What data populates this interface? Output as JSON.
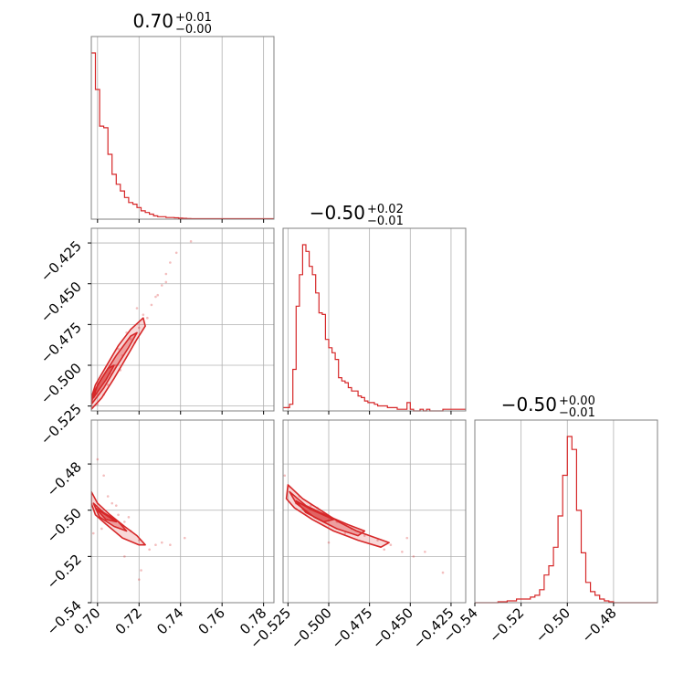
{
  "chart_data": {
    "type": "scatter",
    "subtype": "corner-plot",
    "grid": true,
    "color": "#d62728",
    "parameters": [
      {
        "index": 0,
        "title": {
          "main": "0.70",
          "sup": "+0.01",
          "sub": "−0.00"
        },
        "range": [
          0.697,
          0.785
        ],
        "ticks": [
          0.7,
          0.72,
          0.74,
          0.76,
          0.78
        ],
        "tick_labels": [
          "0.70",
          "0.72",
          "0.74",
          "0.76",
          "0.78"
        ]
      },
      {
        "index": 1,
        "title": {
          "main": "−0.50",
          "sup": "+0.02",
          "sub": "−0.01"
        },
        "range": [
          -0.528,
          -0.416
        ],
        "ticks": [
          -0.525,
          -0.5,
          -0.475,
          -0.45,
          -0.425
        ],
        "tick_labels": [
          "−0.525",
          "−0.500",
          "−0.475",
          "−0.450",
          "−0.425"
        ]
      },
      {
        "index": 2,
        "title": {
          "main": "−0.50",
          "sup": "+0.00",
          "sub": "−0.01"
        },
        "range": [
          -0.54,
          -0.461
        ],
        "ticks": [
          -0.54,
          -0.52,
          -0.5,
          -0.48
        ],
        "tick_labels": [
          "−0.54",
          "−0.52",
          "−0.50",
          "−0.48"
        ]
      }
    ],
    "histograms": [
      {
        "param": 0,
        "bin_edges": [
          0.697,
          0.699,
          0.701,
          0.703,
          0.705,
          0.707,
          0.709,
          0.711,
          0.713,
          0.715,
          0.717,
          0.719,
          0.721,
          0.723,
          0.725,
          0.727,
          0.729,
          0.731,
          0.733,
          0.735,
          0.737,
          0.739,
          0.741,
          0.743,
          0.745,
          0.785
        ],
        "counts": [
          1.0,
          0.78,
          0.56,
          0.55,
          0.39,
          0.27,
          0.21,
          0.17,
          0.13,
          0.1,
          0.09,
          0.07,
          0.05,
          0.04,
          0.03,
          0.02,
          0.015,
          0.015,
          0.01,
          0.01,
          0.008,
          0.006,
          0.005,
          0.004,
          0.003
        ]
      },
      {
        "param": 1,
        "bin_edges": [
          -0.528,
          -0.526,
          -0.524,
          -0.522,
          -0.52,
          -0.518,
          -0.516,
          -0.514,
          -0.512,
          -0.51,
          -0.508,
          -0.506,
          -0.504,
          -0.502,
          -0.5,
          -0.498,
          -0.496,
          -0.494,
          -0.492,
          -0.49,
          -0.488,
          -0.486,
          -0.484,
          -0.482,
          -0.48,
          -0.478,
          -0.476,
          -0.474,
          -0.472,
          -0.47,
          -0.468,
          -0.466,
          -0.464,
          -0.462,
          -0.46,
          -0.458,
          -0.456,
          -0.454,
          -0.452,
          -0.45,
          -0.448,
          -0.446,
          -0.444,
          -0.442,
          -0.44,
          -0.438,
          -0.436,
          -0.434,
          -0.432,
          -0.43,
          -0.416
        ],
        "counts": [
          0.02,
          0.02,
          0.04,
          0.25,
          0.63,
          0.82,
          1.0,
          0.96,
          0.87,
          0.82,
          0.71,
          0.59,
          0.58,
          0.43,
          0.38,
          0.35,
          0.31,
          0.2,
          0.18,
          0.17,
          0.14,
          0.12,
          0.12,
          0.09,
          0.08,
          0.06,
          0.05,
          0.05,
          0.04,
          0.03,
          0.03,
          0.03,
          0.02,
          0.02,
          0.02,
          0.01,
          0.01,
          0.01,
          0.05,
          0.01,
          0.0,
          0.0,
          0.01,
          0.0,
          0.01,
          0.0,
          0.0,
          0.0,
          0.0,
          0.01
        ]
      },
      {
        "param": 2,
        "bin_edges": [
          -0.54,
          -0.53,
          -0.528,
          -0.526,
          -0.524,
          -0.522,
          -0.52,
          -0.518,
          -0.516,
          -0.514,
          -0.512,
          -0.51,
          -0.508,
          -0.506,
          -0.504,
          -0.502,
          -0.5,
          -0.498,
          -0.496,
          -0.494,
          -0.492,
          -0.49,
          -0.488,
          -0.486,
          -0.484,
          -0.482,
          -0.48,
          -0.461
        ],
        "counts": [
          0.0,
          0.005,
          0.005,
          0.01,
          0.01,
          0.02,
          0.02,
          0.02,
          0.03,
          0.04,
          0.07,
          0.15,
          0.2,
          0.3,
          0.47,
          0.69,
          0.9,
          0.83,
          0.5,
          0.27,
          0.11,
          0.06,
          0.04,
          0.02,
          0.01,
          0.005,
          0.0
        ]
      }
    ],
    "contours": [
      {
        "x_param": 0,
        "y_param": 1,
        "levels": [
          [
            [
              0.697,
              -0.527
            ],
            [
              0.702,
              -0.52
            ],
            [
              0.708,
              -0.508
            ],
            [
              0.714,
              -0.495
            ],
            [
              0.719,
              -0.484
            ],
            [
              0.723,
              -0.476
            ],
            [
              0.722,
              -0.471
            ],
            [
              0.716,
              -0.478
            ],
            [
              0.71,
              -0.488
            ],
            [
              0.704,
              -0.501
            ],
            [
              0.699,
              -0.512
            ],
            [
              0.697,
              -0.52
            ]
          ],
          [
            [
              0.697,
              -0.524
            ],
            [
              0.703,
              -0.514
            ],
            [
              0.709,
              -0.501
            ],
            [
              0.715,
              -0.489
            ],
            [
              0.719,
              -0.48
            ],
            [
              0.716,
              -0.482
            ],
            [
              0.709,
              -0.494
            ],
            [
              0.702,
              -0.508
            ],
            [
              0.698,
              -0.517
            ]
          ],
          [
            [
              0.698,
              -0.52
            ],
            [
              0.704,
              -0.509
            ],
            [
              0.708,
              -0.5
            ],
            [
              0.705,
              -0.502
            ],
            [
              0.7,
              -0.512
            ]
          ]
        ],
        "scatter": [
          [
            0.7,
            -0.524
          ],
          [
            0.703,
            -0.518
          ],
          [
            0.706,
            -0.505
          ],
          [
            0.709,
            -0.5
          ],
          [
            0.712,
            -0.494
          ],
          [
            0.716,
            -0.484
          ],
          [
            0.72,
            -0.477
          ],
          [
            0.722,
            -0.469
          ],
          [
            0.726,
            -0.463
          ],
          [
            0.728,
            -0.458
          ],
          [
            0.731,
            -0.451
          ],
          [
            0.733,
            -0.444
          ],
          [
            0.735,
            -0.437
          ],
          [
            0.738,
            -0.431
          ],
          [
            0.745,
            -0.424
          ],
          [
            0.705,
            -0.512
          ],
          [
            0.711,
            -0.503
          ],
          [
            0.718,
            -0.486
          ],
          [
            0.724,
            -0.471
          ],
          [
            0.729,
            -0.457
          ],
          [
            0.733,
            -0.449
          ],
          [
            0.699,
            -0.514
          ],
          [
            0.71,
            -0.49
          ],
          [
            0.714,
            -0.48
          ],
          [
            0.719,
            -0.465
          ]
        ]
      },
      {
        "x_param": 0,
        "y_param": 2,
        "levels": [
          [
            [
              0.697,
              -0.492
            ],
            [
              0.7,
              -0.497
            ],
            [
              0.706,
              -0.502
            ],
            [
              0.713,
              -0.507
            ],
            [
              0.719,
              -0.511
            ],
            [
              0.723,
              -0.515
            ],
            [
              0.72,
              -0.515
            ],
            [
              0.712,
              -0.512
            ],
            [
              0.704,
              -0.506
            ],
            [
              0.699,
              -0.502
            ],
            [
              0.697,
              -0.497
            ]
          ],
          [
            [
              0.698,
              -0.497
            ],
            [
              0.703,
              -0.501
            ],
            [
              0.71,
              -0.505
            ],
            [
              0.714,
              -0.509
            ],
            [
              0.708,
              -0.507
            ],
            [
              0.701,
              -0.503
            ]
          ],
          [
            [
              0.699,
              -0.499
            ],
            [
              0.704,
              -0.502
            ],
            [
              0.709,
              -0.505
            ],
            [
              0.704,
              -0.504
            ]
          ]
        ],
        "scatter": [
          [
            0.7,
            -0.478
          ],
          [
            0.703,
            -0.485
          ],
          [
            0.705,
            -0.494
          ],
          [
            0.707,
            -0.497
          ],
          [
            0.71,
            -0.502
          ],
          [
            0.713,
            -0.505
          ],
          [
            0.716,
            -0.509
          ],
          [
            0.72,
            -0.513
          ],
          [
            0.725,
            -0.517
          ],
          [
            0.731,
            -0.514
          ],
          [
            0.735,
            -0.515
          ],
          [
            0.742,
            -0.512
          ],
          [
            0.72,
            -0.53
          ],
          [
            0.721,
            -0.526
          ],
          [
            0.713,
            -0.52
          ],
          [
            0.698,
            -0.51
          ],
          [
            0.702,
            -0.508
          ],
          [
            0.709,
            -0.498
          ],
          [
            0.715,
            -0.503
          ],
          [
            0.728,
            -0.515
          ]
        ]
      },
      {
        "x_param": 1,
        "y_param": 2,
        "levels": [
          [
            [
              -0.525,
              -0.489
            ],
            [
              -0.516,
              -0.495
            ],
            [
              -0.505,
              -0.5
            ],
            [
              -0.494,
              -0.505
            ],
            [
              -0.483,
              -0.509
            ],
            [
              -0.471,
              -0.512
            ],
            [
              -0.463,
              -0.514
            ],
            [
              -0.468,
              -0.516
            ],
            [
              -0.482,
              -0.513
            ],
            [
              -0.497,
              -0.509
            ],
            [
              -0.51,
              -0.504
            ],
            [
              -0.521,
              -0.499
            ],
            [
              -0.526,
              -0.495
            ]
          ],
          [
            [
              -0.524,
              -0.492
            ],
            [
              -0.514,
              -0.498
            ],
            [
              -0.502,
              -0.502
            ],
            [
              -0.489,
              -0.506
            ],
            [
              -0.478,
              -0.509
            ],
            [
              -0.482,
              -0.511
            ],
            [
              -0.495,
              -0.508
            ],
            [
              -0.509,
              -0.503
            ],
            [
              -0.52,
              -0.497
            ]
          ],
          [
            [
              -0.52,
              -0.496
            ],
            [
              -0.51,
              -0.5
            ],
            [
              -0.497,
              -0.504
            ],
            [
              -0.503,
              -0.505
            ],
            [
              -0.514,
              -0.501
            ]
          ]
        ],
        "scatter": [
          [
            -0.527,
            -0.485
          ],
          [
            -0.524,
            -0.49
          ],
          [
            -0.518,
            -0.494
          ],
          [
            -0.511,
            -0.498
          ],
          [
            -0.503,
            -0.501
          ],
          [
            -0.495,
            -0.505
          ],
          [
            -0.486,
            -0.508
          ],
          [
            -0.478,
            -0.511
          ],
          [
            -0.47,
            -0.513
          ],
          [
            -0.462,
            -0.515
          ],
          [
            -0.455,
            -0.518
          ],
          [
            -0.448,
            -0.52
          ],
          [
            -0.441,
            -0.518
          ],
          [
            -0.43,
            -0.527
          ],
          [
            -0.5,
            -0.514
          ],
          [
            -0.49,
            -0.51
          ],
          [
            -0.507,
            -0.499
          ],
          [
            -0.52,
            -0.497
          ],
          [
            -0.466,
            -0.517
          ],
          [
            -0.452,
            -0.512
          ]
        ]
      }
    ]
  }
}
